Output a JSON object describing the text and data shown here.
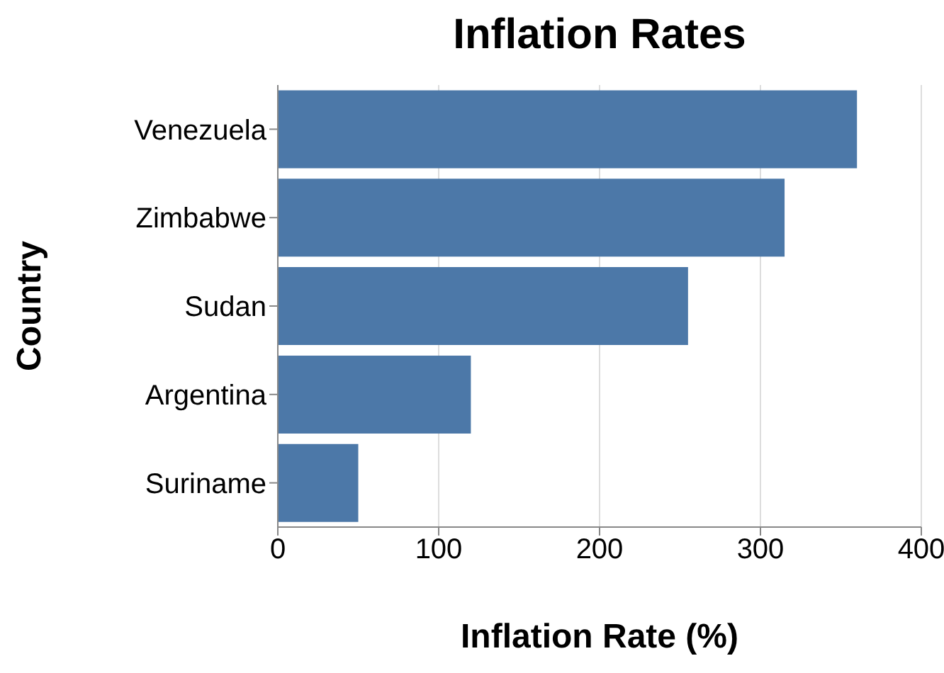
{
  "chart_data": {
    "type": "bar",
    "orientation": "horizontal",
    "title": "Inflation Rates",
    "xlabel": "Inflation Rate (%)",
    "ylabel": "Country",
    "categories": [
      "Venezuela",
      "Zimbabwe",
      "Sudan",
      "Argentina",
      "Suriname"
    ],
    "values": [
      360,
      315,
      255,
      120,
      50
    ],
    "color": "#4c78a8",
    "xlim": [
      0,
      400
    ],
    "xticks": [
      0,
      100,
      200,
      300,
      400
    ],
    "grid": "x"
  }
}
